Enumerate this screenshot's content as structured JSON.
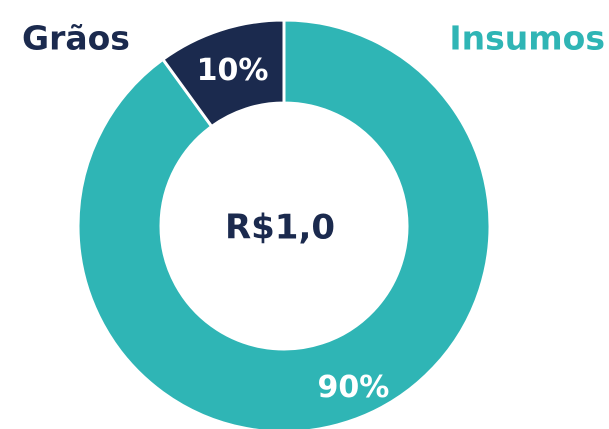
{
  "chart_data": {
    "type": "donut",
    "categories": [
      "Insumos",
      "Grãos"
    ],
    "values": [
      90,
      10
    ],
    "value_labels": [
      "90%",
      "10%"
    ],
    "colors": [
      "#2fb5b5",
      "#1b2a4e"
    ],
    "center_label": "R$1,0"
  }
}
